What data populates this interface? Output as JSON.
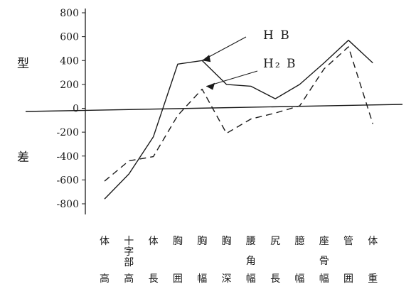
{
  "chart_data": {
    "type": "line",
    "ylabel_top": "型",
    "ylabel_bottom": "差",
    "ylim": [
      -800,
      800
    ],
    "yticks": [
      "800",
      "600",
      "400",
      "200",
      "0",
      "-200",
      "-400",
      "-600",
      "-800"
    ],
    "yticks_values": [
      800,
      600,
      400,
      200,
      0,
      -200,
      -400,
      -600,
      -800
    ],
    "categories": [
      [
        "体",
        "",
        "高"
      ],
      [
        "十字部",
        "",
        "高"
      ],
      [
        "体",
        "",
        "長"
      ],
      [
        "胸",
        "",
        "囲"
      ],
      [
        "胸",
        "",
        "幅"
      ],
      [
        "胸",
        "",
        "深"
      ],
      [
        "腰",
        "角",
        "幅"
      ],
      [
        "尻",
        "",
        "長"
      ],
      [
        "臆",
        "",
        "幅"
      ],
      [
        "座",
        "骨",
        "幅"
      ],
      [
        "管",
        "",
        "囲"
      ],
      [
        "体",
        "",
        "重"
      ]
    ],
    "series": [
      {
        "name": "H B",
        "style": "solid",
        "color": "#1a1a1a",
        "values": [
          -760,
          -550,
          -240,
          370,
          400,
          200,
          185,
          80,
          200,
          380,
          570,
          380
        ]
      },
      {
        "name": "H₂ B",
        "style": "dashed",
        "color": "#1a1a1a",
        "values": [
          -610,
          -440,
          -405,
          -60,
          160,
          -210,
          -90,
          -40,
          20,
          330,
          515,
          -130
        ]
      }
    ],
    "legend": [
      {
        "label": "H B",
        "series": 0
      },
      {
        "label": "H₂ B",
        "series": 1
      }
    ]
  }
}
